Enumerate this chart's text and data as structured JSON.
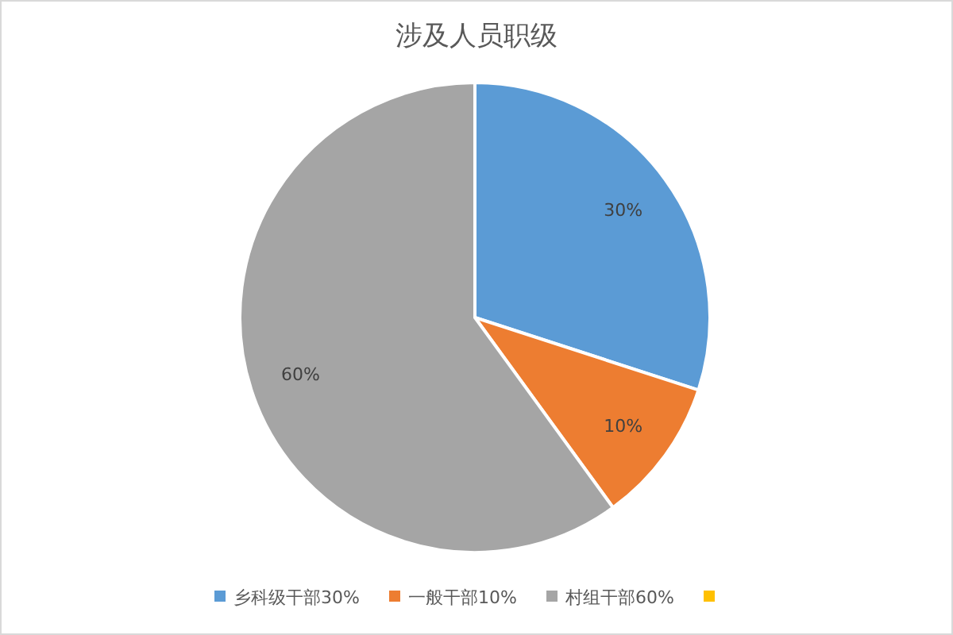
{
  "chart_data": {
    "type": "pie",
    "title": "涉及人员职级",
    "categories": [
      "乡科级干部30%",
      "一般干部10%",
      "村组干部60%",
      null
    ],
    "values": [
      30,
      10,
      60,
      0
    ],
    "colors": [
      "#5b9bd5",
      "#ed7d31",
      "#a5a5a5",
      "#ffc000"
    ],
    "value_labels": [
      "30%",
      "10%",
      "60%",
      null
    ],
    "legend": "bottom"
  }
}
